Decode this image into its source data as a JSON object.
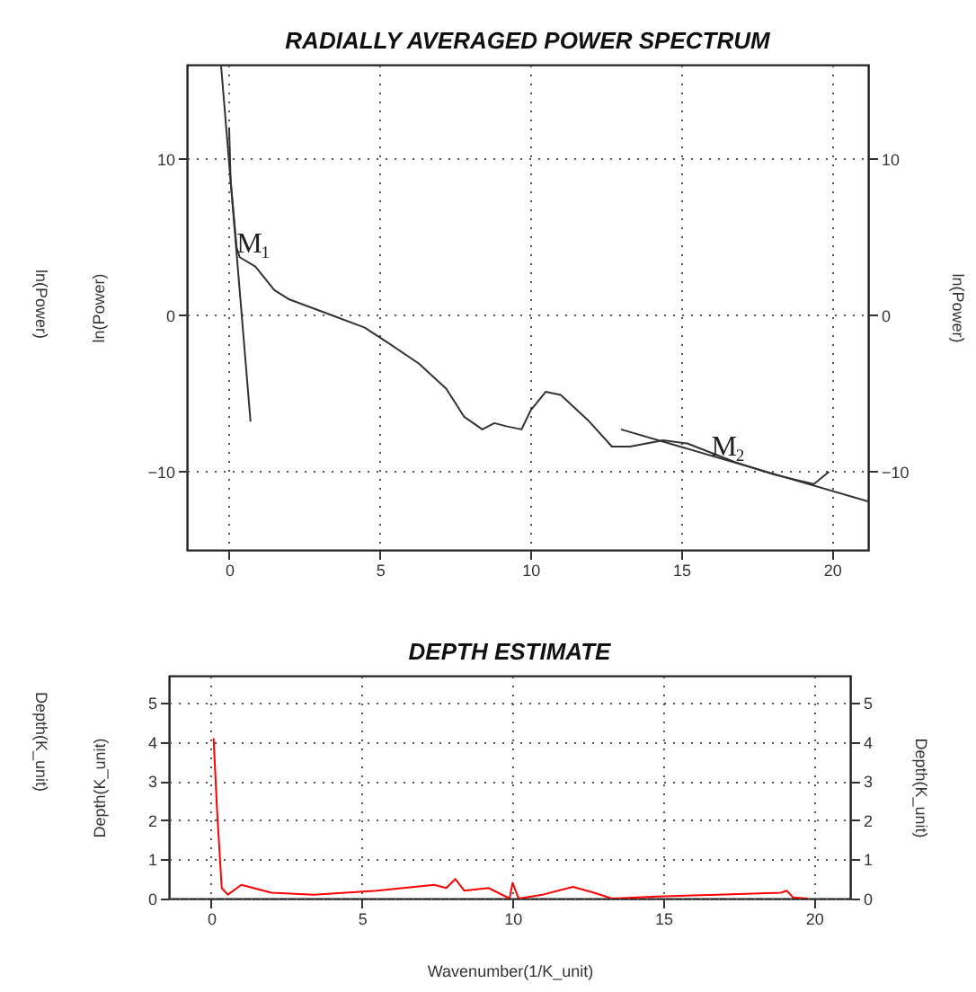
{
  "chart_data": [
    {
      "type": "line",
      "title": "RADIALLY AVERAGED POWER SPECTRUM",
      "ylabel": "ln(Power)",
      "y2label": "ln(Power)",
      "xlim": [
        -1.4,
        21.2
      ],
      "ylim": [
        -15,
        16
      ],
      "xticks": [
        0,
        5,
        10,
        15,
        20
      ],
      "yticks": [
        -10,
        0,
        10
      ],
      "y2lim": [
        -15,
        16
      ],
      "y2ticks": [
        -10,
        0,
        10
      ],
      "grid": true,
      "series": [
        {
          "color": "#333333",
          "x": [
            0,
            0.05,
            0.25,
            0.35,
            0.87,
            1.5,
            2,
            3.4,
            4.5,
            5.3,
            6.3,
            7.2,
            7.8,
            8.1,
            8.4,
            8.8,
            9.2,
            9.7,
            10,
            10.5,
            11,
            11.9,
            12.7,
            13.3,
            14.4,
            15.2,
            16,
            16.8,
            18.1,
            19.4,
            19.9
          ],
          "values": [
            12,
            8.6,
            4.3,
            3.7,
            3.1,
            1.6,
            1.0,
            0,
            -0.8,
            -1.8,
            -3.1,
            -4.7,
            -6.5,
            -6.9,
            -7.3,
            -6.9,
            -7.1,
            -7.3,
            -6.1,
            -4.9,
            -5.1,
            -6.7,
            -8.4,
            -8.4,
            -8.0,
            -8.2,
            -8.8,
            -9.4,
            -10.2,
            -10.8,
            -10
          ]
        },
        {
          "color": "#333333",
          "x": [
            -0.27,
            0.71
          ],
          "values": [
            16,
            -6.8
          ]
        },
        {
          "color": "#333333",
          "x": [
            13.0,
            21.2
          ],
          "values": [
            -7.3,
            -11.9
          ]
        }
      ],
      "annotations": [
        "ln(Power)",
        {
          "text": "M$_{1}$",
          "x": 0.25,
          "y": 4
        },
        {
          "text": "M$_{2}$",
          "x": 16.0,
          "y": -9
        }
      ]
    },
    {
      "type": "line",
      "title": "DEPTH ESTIMATE",
      "xlabel": "Wavenumber(1/K_unit)",
      "ylabel": "Depth(K_unit)",
      "y2label": "Depth(K_unit)",
      "xlim": [
        -1.4,
        21.2
      ],
      "ylim": [
        0,
        5.7
      ],
      "xticks": [
        0,
        5,
        10,
        15,
        20
      ],
      "yticks": [
        0,
        1,
        2,
        3,
        4,
        5
      ],
      "y2lim": [
        0,
        5.7
      ],
      "y2ticks": [
        0,
        1,
        2,
        3,
        4,
        5
      ],
      "grid": true,
      "series": [
        {
          "color": "#ff0000",
          "x": [
            0.08,
            0.2,
            0.35,
            0.55,
            1,
            1.4,
            2,
            3.4,
            5.5,
            7.4,
            7.8,
            8.1,
            8.4,
            9.2,
            9.9,
            10,
            10.2,
            11,
            12,
            12.7,
            13.3,
            14.8,
            16.8,
            18.9,
            19.1,
            19.3,
            19.8
          ],
          "values": [
            4.1,
            2.2,
            0.27,
            0.1,
            0.35,
            0.27,
            0.15,
            0.1,
            0.2,
            0.35,
            0.27,
            0.5,
            0.2,
            0.27,
            0,
            0.4,
            0,
            0.1,
            0.3,
            0.15,
            0,
            0.05,
            0.1,
            0.15,
            0.2,
            0.03,
            0
          ]
        }
      ],
      "annotations": [
        "Depth(K_unit)"
      ]
    }
  ]
}
